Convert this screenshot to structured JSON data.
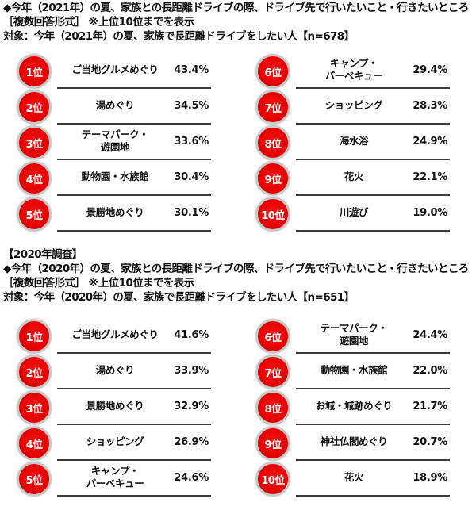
{
  "survey_2021": {
    "heading": {
      "line1": "◆今年（2021年）の夏、家族との長距離ドライブの際、ドライブ先で行いたいこと・行きたいところ",
      "line2": "［複数回答形式］ ※上位10位までを表示",
      "line3": "対象：今年（2021年）の夏、家族で長距離ドライブをしたい人【n=678】"
    },
    "ranks": [
      {
        "rank": "1位",
        "label": "ご当地グルメめぐり",
        "value": "43.4%"
      },
      {
        "rank": "2位",
        "label": "湯めぐり",
        "value": "34.5%"
      },
      {
        "rank": "3位",
        "label": "テーマパーク・\n遊園地",
        "value": "33.6%"
      },
      {
        "rank": "4位",
        "label": "動物園・水族館",
        "value": "30.4%"
      },
      {
        "rank": "5位",
        "label": "景勝地めぐり",
        "value": "30.1%"
      },
      {
        "rank": "6位",
        "label": "キャンプ・\nバーベキュー",
        "value": "29.4%"
      },
      {
        "rank": "7位",
        "label": "ショッピング",
        "value": "28.3%"
      },
      {
        "rank": "8位",
        "label": "海水浴",
        "value": "24.9%"
      },
      {
        "rank": "9位",
        "label": "花火",
        "value": "22.1%"
      },
      {
        "rank": "10位",
        "label": "川遊び",
        "value": "19.0%"
      }
    ]
  },
  "survey_2020": {
    "heading": {
      "line0": "【2020年調査】",
      "line1": "◆今年（2020年）の夏、家族との長距離ドライブの際、ドライブ先で行いたいこと・行きたいところ",
      "line2": "［複数回答形式］ ※上位10位までを表示",
      "line3": "対象：今年（2020年）の夏、家族で長距離ドライブをしたい人【n=651】"
    },
    "ranks": [
      {
        "rank": "1位",
        "label": "ご当地グルメめぐり",
        "value": "41.6%"
      },
      {
        "rank": "2位",
        "label": "湯めぐり",
        "value": "33.9%"
      },
      {
        "rank": "3位",
        "label": "景勝地めぐり",
        "value": "32.9%"
      },
      {
        "rank": "4位",
        "label": "ショッピング",
        "value": "26.9%"
      },
      {
        "rank": "5位",
        "label": "キャンプ・\nバーベキュー",
        "value": "24.6%"
      },
      {
        "rank": "6位",
        "label": "テーマパーク・\n遊園地",
        "value": "24.4%"
      },
      {
        "rank": "7位",
        "label": "動物園・水族館",
        "value": "22.0%"
      },
      {
        "rank": "8位",
        "label": "お城・城跡めぐり",
        "value": "21.7%"
      },
      {
        "rank": "9位",
        "label": "神社仏閣めぐり",
        "value": "20.7%"
      },
      {
        "rank": "10位",
        "label": "花火",
        "value": "18.9%"
      }
    ]
  },
  "colors": {
    "badge_red": "#e40000",
    "badge_ring": "#c9c9c9",
    "separator": "#3a3a3a",
    "text": "#111111"
  },
  "chart_data": [
    {
      "type": "table",
      "title": "今年（2021年）の夏、家族との長距離ドライブの際、ドライブ先で行いたいこと・行きたいところ",
      "subtitle": "［複数回答形式］ ※上位10位までを表示 / 対象：今年（2021年）の夏、家族で長距離ドライブをしたい人【n=678】",
      "categories": [
        "ご当地グルメめぐり",
        "湯めぐり",
        "テーマパーク・遊園地",
        "動物園・水族館",
        "景勝地めぐり",
        "キャンプ・バーベキュー",
        "ショッピング",
        "海水浴",
        "花火",
        "川遊び"
      ],
      "values": [
        43.4,
        34.5,
        33.6,
        30.4,
        30.1,
        29.4,
        28.3,
        24.9,
        22.1,
        19.0
      ],
      "unit": "%",
      "n": 678
    },
    {
      "type": "table",
      "title": "【2020年調査】今年（2020年）の夏、家族との長距離ドライブの際、ドライブ先で行いたいこと・行きたいところ",
      "subtitle": "［複数回答形式］ ※上位10位までを表示 / 対象：今年（2020年）の夏、家族で長距離ドライブをしたい人【n=651】",
      "categories": [
        "ご当地グルメめぐり",
        "湯めぐり",
        "景勝地めぐり",
        "ショッピング",
        "キャンプ・バーベキュー",
        "テーマパーク・遊園地",
        "動物園・水族館",
        "お城・城跡めぐり",
        "神社仏閣めぐり",
        "花火"
      ],
      "values": [
        41.6,
        33.9,
        32.9,
        26.9,
        24.6,
        24.4,
        22.0,
        21.7,
        20.7,
        18.9
      ],
      "unit": "%",
      "n": 651
    }
  ]
}
